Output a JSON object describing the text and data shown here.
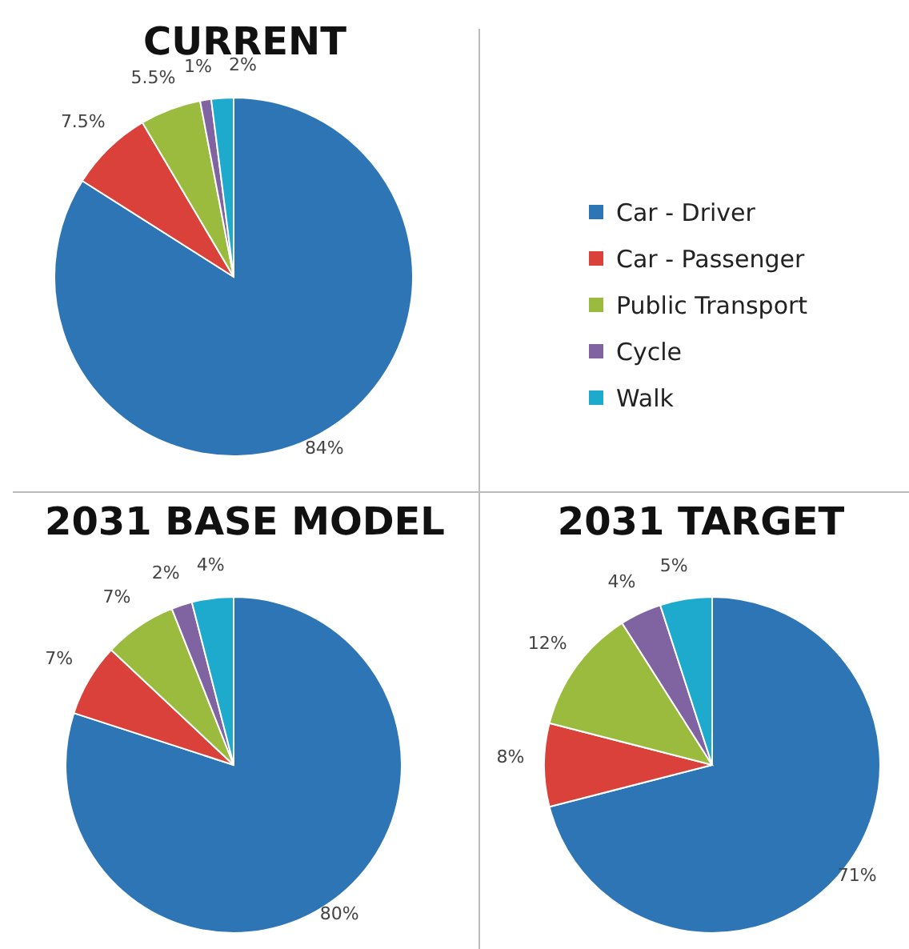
{
  "chart_data": [
    {
      "type": "pie",
      "title": "CURRENT",
      "categories": [
        "Car - Driver",
        "Car - Passenger",
        "Public Transport",
        "Cycle",
        "Walk"
      ],
      "values": [
        84,
        7.5,
        5.5,
        1,
        2
      ],
      "value_labels": [
        "84%",
        "7.5%",
        "5.5%",
        "1%",
        "2%"
      ],
      "colors": [
        "#2e75b6",
        "#d9413a",
        "#9bbb3f",
        "#8064a2",
        "#1eaacc"
      ],
      "legend": "right"
    },
    {
      "type": "pie",
      "title": "2031 BASE MODEL",
      "categories": [
        null,
        null,
        null,
        null,
        null
      ],
      "values": [
        80,
        7,
        7,
        2,
        4
      ],
      "value_labels": [
        "80%",
        "7%",
        "7%",
        "2%",
        "4%"
      ],
      "colors": [
        "#2e75b6",
        "#d9413a",
        "#9bbb3f",
        "#8064a2",
        "#1eaacc"
      ]
    },
    {
      "type": "pie",
      "title": "2031 TARGET",
      "categories": [
        null,
        null,
        null,
        null,
        null
      ],
      "values": [
        71,
        8,
        12,
        4,
        5
      ],
      "value_labels": [
        "71%",
        "8%",
        "12%",
        "4%",
        "5%"
      ],
      "colors": [
        "#2e75b6",
        "#d9413a",
        "#9bbb3f",
        "#8064a2",
        "#1eaacc"
      ]
    }
  ]
}
